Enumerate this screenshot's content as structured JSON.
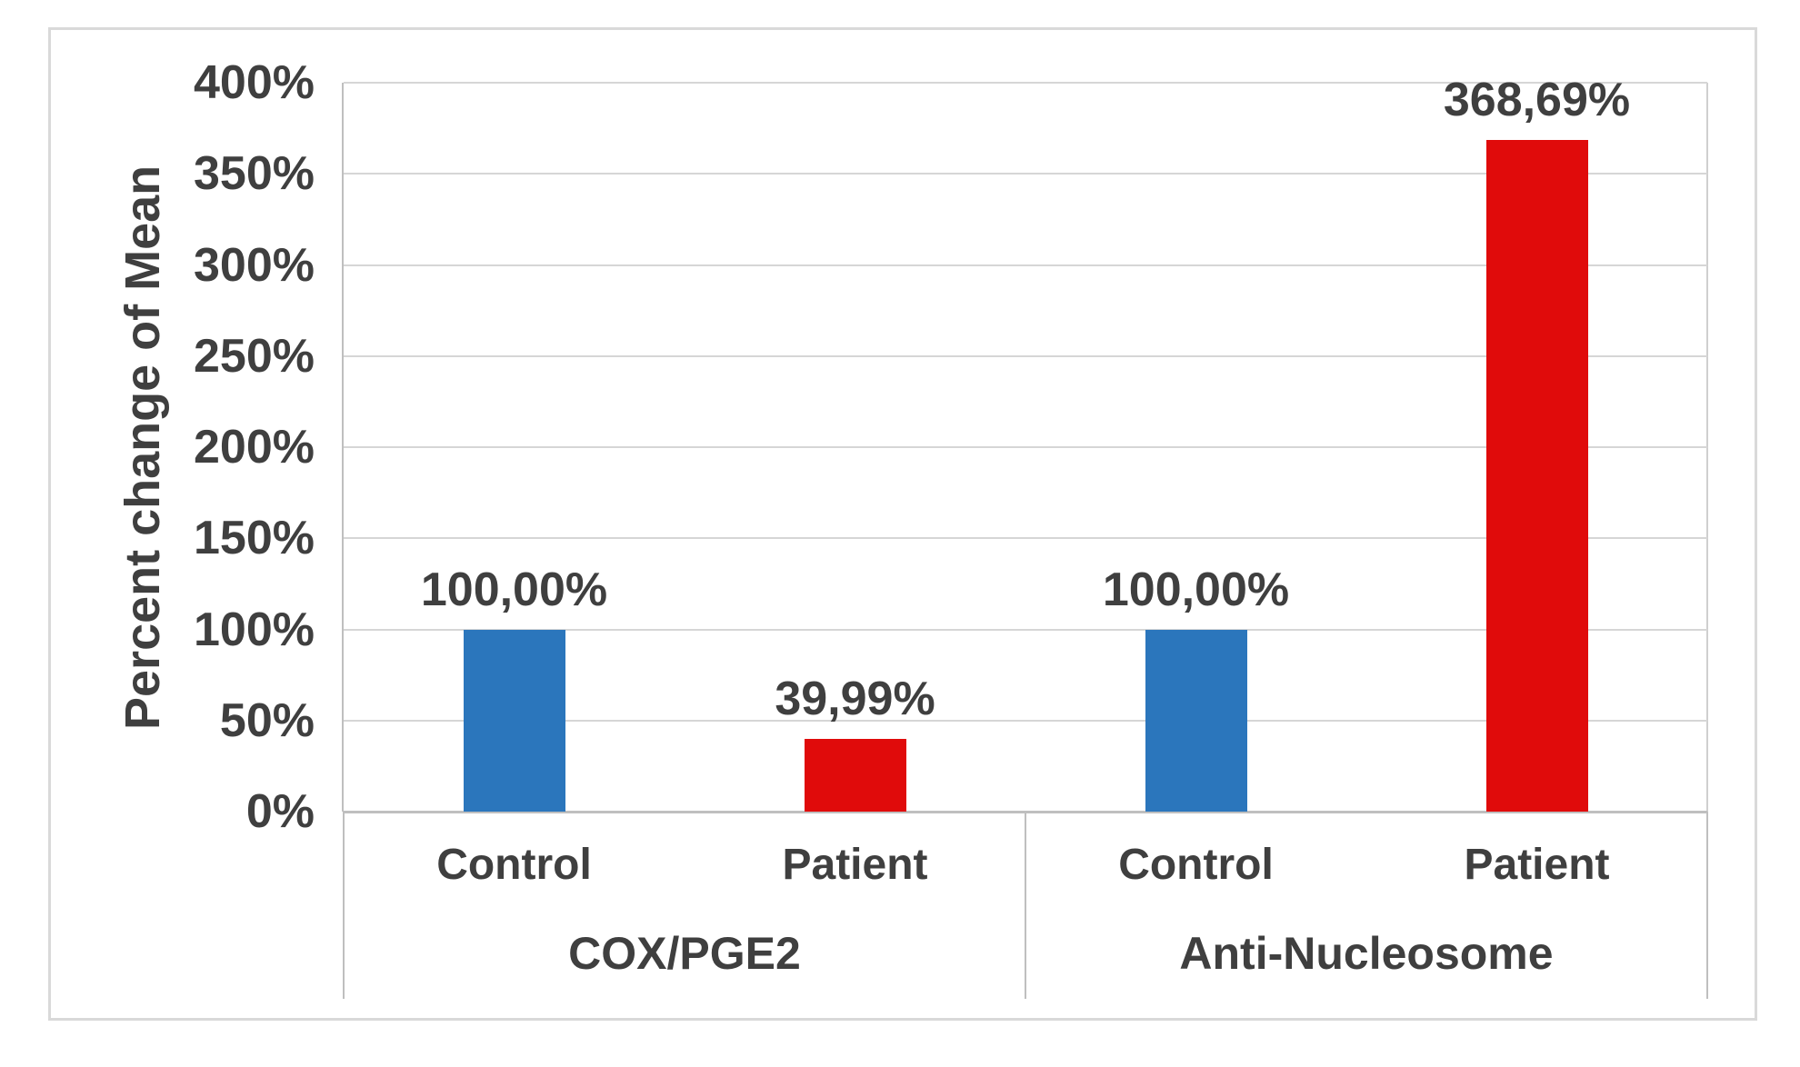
{
  "figure": {
    "background": "#ffffff",
    "border_color": "#d9d9d9"
  },
  "chart_data": {
    "type": "bar",
    "title": "",
    "ylabel": "Percent change of Mean",
    "xlabel": "",
    "ylim": [
      0,
      400
    ],
    "ytick_step": 50,
    "ytick_labels": [
      "0%",
      "50%",
      "100%",
      "150%",
      "200%",
      "250%",
      "300%",
      "350%",
      "400%"
    ],
    "grid": true,
    "legend": false,
    "decimal_separator": ",",
    "colors": {
      "control": "#2b76bc",
      "patient": "#e00b0b"
    },
    "text_color": "#3f3f3f",
    "gridline_color": "#d6d6d6",
    "axis_line_color": "#bfbfbf",
    "groups": [
      {
        "label": "COX/PGE2",
        "bars": [
          {
            "category": "Control",
            "series": "Control",
            "value": 100.0,
            "data_label": "100,00%",
            "color": "#2b76bc"
          },
          {
            "category": "Patient",
            "series": "Patient",
            "value": 39.99,
            "data_label": "39,99%",
            "color": "#e00b0b"
          }
        ]
      },
      {
        "label": "Anti-Nucleosome",
        "bars": [
          {
            "category": "Control",
            "series": "Control",
            "value": 100.0,
            "data_label": "100,00%",
            "color": "#2b76bc"
          },
          {
            "category": "Patient",
            "series": "Patient",
            "value": 368.69,
            "data_label": "368,69%",
            "color": "#e00b0b"
          }
        ]
      }
    ]
  }
}
